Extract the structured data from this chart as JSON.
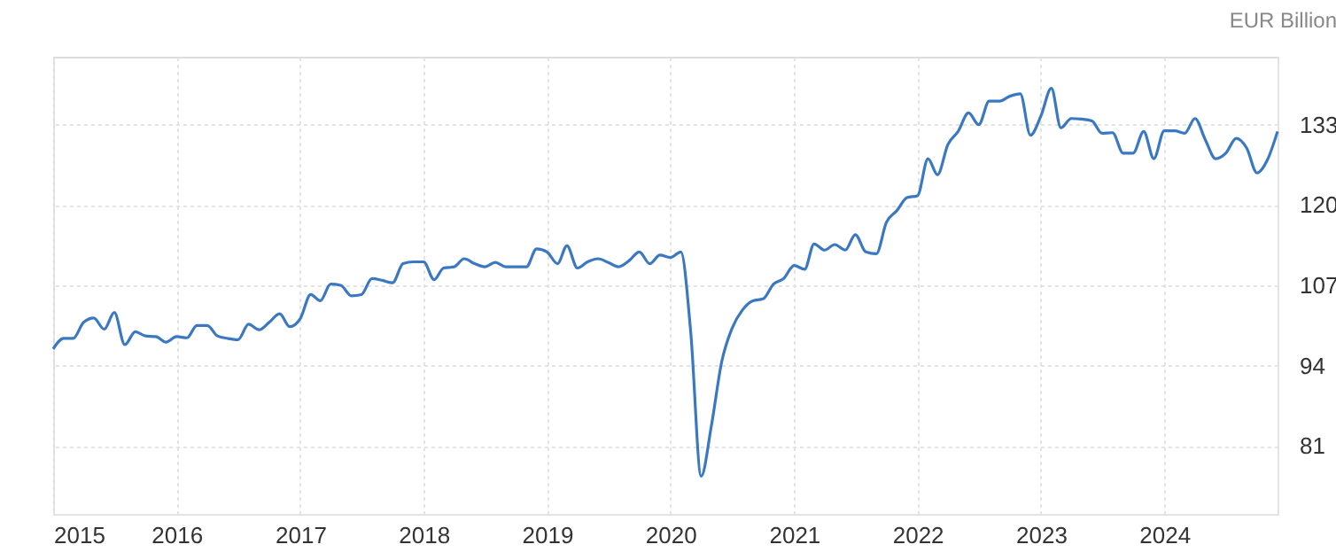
{
  "chart_data": {
    "type": "line",
    "ylabel": "EUR Billion",
    "x": [
      "2015-01",
      "2015-02",
      "2015-03",
      "2015-04",
      "2015-05",
      "2015-06",
      "2015-07",
      "2015-08",
      "2015-09",
      "2015-10",
      "2015-11",
      "2015-12",
      "2016-01",
      "2016-02",
      "2016-03",
      "2016-04",
      "2016-05",
      "2016-06",
      "2016-07",
      "2016-08",
      "2016-09",
      "2016-10",
      "2016-11",
      "2016-12",
      "2017-01",
      "2017-02",
      "2017-03",
      "2017-04",
      "2017-05",
      "2017-06",
      "2017-07",
      "2017-08",
      "2017-09",
      "2017-10",
      "2017-11",
      "2017-12",
      "2018-01",
      "2018-02",
      "2018-03",
      "2018-04",
      "2018-05",
      "2018-06",
      "2018-07",
      "2018-08",
      "2018-09",
      "2018-10",
      "2018-11",
      "2018-12",
      "2019-01",
      "2019-02",
      "2019-03",
      "2019-04",
      "2019-05",
      "2019-06",
      "2019-07",
      "2019-08",
      "2019-09",
      "2019-10",
      "2019-11",
      "2019-12",
      "2020-01",
      "2020-02",
      "2020-03",
      "2020-04",
      "2020-05",
      "2020-06",
      "2020-07",
      "2020-08",
      "2020-09",
      "2020-10",
      "2020-11",
      "2020-12",
      "2021-01",
      "2021-02",
      "2021-03",
      "2021-04",
      "2021-05",
      "2021-06",
      "2021-07",
      "2021-08",
      "2021-09",
      "2021-10",
      "2021-11",
      "2021-12",
      "2022-01",
      "2022-02",
      "2022-03",
      "2022-04",
      "2022-05",
      "2022-06",
      "2022-07",
      "2022-08",
      "2022-09",
      "2022-10",
      "2022-11",
      "2022-12",
      "2023-01",
      "2023-02",
      "2023-03",
      "2023-04",
      "2023-05",
      "2023-06",
      "2023-07",
      "2023-08",
      "2023-09",
      "2023-10",
      "2023-11",
      "2023-12",
      "2024-01",
      "2024-02",
      "2024-03",
      "2024-04",
      "2024-05",
      "2024-06",
      "2024-07",
      "2024-08",
      "2024-09",
      "2024-10",
      "2024-11",
      "2024-12"
    ],
    "series": [
      {
        "color": "#3b78c3",
        "values": [
          96.7,
          98.4,
          98.4,
          101.0,
          101.7,
          99.9,
          102.6,
          97.4,
          99.5,
          98.8,
          98.7,
          97.8,
          98.7,
          98.5,
          100.5,
          100.5,
          98.8,
          98.4,
          98.2,
          100.7,
          99.8,
          101.0,
          102.4,
          100.3,
          101.6,
          105.5,
          104.5,
          107.2,
          107.0,
          105.3,
          105.5,
          108.1,
          107.8,
          107.4,
          110.5,
          110.8,
          110.8,
          107.9,
          109.8,
          110.0,
          111.3,
          110.5,
          110.0,
          110.7,
          110.0,
          110.0,
          110.0,
          112.9,
          112.4,
          110.5,
          113.4,
          109.8,
          110.8,
          111.3,
          110.7,
          110.0,
          111.0,
          112.4,
          110.5,
          111.9,
          111.5,
          112.4,
          99.5,
          76.1,
          84.2,
          94.7,
          100.0,
          103.0,
          104.5,
          104.8,
          107.2,
          108.1,
          110.2,
          109.6,
          113.7,
          112.7,
          113.6,
          112.7,
          115.2,
          112.4,
          112.1,
          117.2,
          119.1,
          121.2,
          121.5,
          127.5,
          124.9,
          129.8,
          131.9,
          134.9,
          133.0,
          136.8,
          136.8,
          137.6,
          138.0,
          131.3,
          134.4,
          138.9,
          132.5,
          134.0,
          133.9,
          133.6,
          131.6,
          131.7,
          128.4,
          128.4,
          131.9,
          127.5,
          132.0,
          132.0,
          131.6,
          134.0,
          130.6,
          127.5,
          128.4,
          130.8,
          129.2,
          125.2,
          127.3,
          131.9
        ]
      }
    ],
    "xlim": [
      "2015-01",
      "2024-12"
    ],
    "xticks": [
      "2015",
      "2016",
      "2017",
      "2018",
      "2019",
      "2020",
      "2021",
      "2022",
      "2023",
      "2024"
    ],
    "ylim": [
      70,
      144
    ],
    "yticks": [
      81,
      94,
      107,
      120,
      133
    ],
    "grid": true,
    "marker": "none",
    "line_style": "solid"
  }
}
